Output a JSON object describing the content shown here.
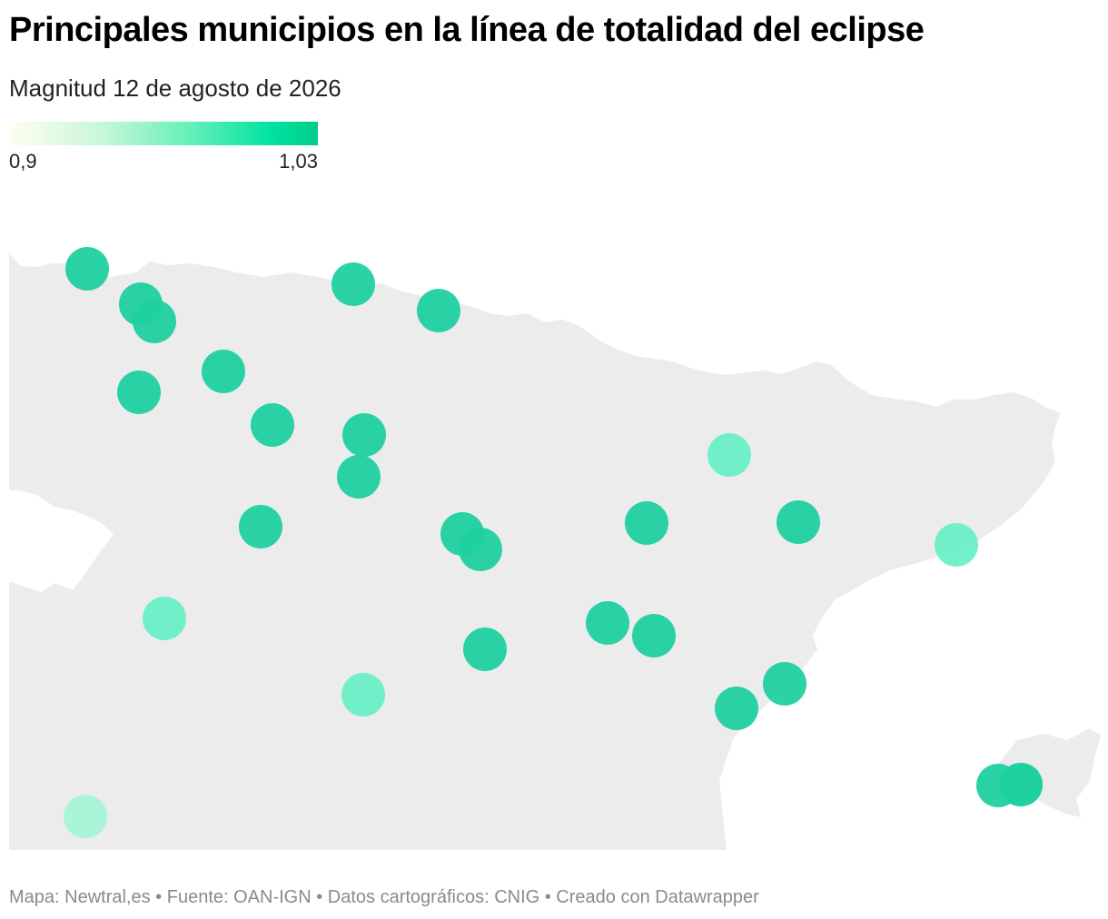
{
  "title": "Principales municipios en la línea de totalidad del eclipse",
  "subtitle": "Magnitud 12 de agosto de 2026",
  "legend": {
    "min_label": "0,9",
    "max_label": "1,03",
    "gradient_colors": [
      "#fffef0",
      "#c8f7d8",
      "#60efb8",
      "#00e3a0",
      "#00cc8a"
    ]
  },
  "colors": {
    "land": "#ececec",
    "marker_high": "#1fd0a0",
    "marker_mid": "#64f0c4",
    "marker_low": "#a3f5d6"
  },
  "footer": "Mapa: Newtral,es • Fuente: OAN-IGN • Datos cartográficos: CNIG  • Creado con Datawrapper",
  "markers": [
    {
      "id": "m1",
      "level": "high"
    },
    {
      "id": "m2",
      "level": "high"
    },
    {
      "id": "m3",
      "level": "high"
    },
    {
      "id": "m4",
      "level": "high"
    },
    {
      "id": "m5",
      "level": "high"
    },
    {
      "id": "m6",
      "level": "high"
    },
    {
      "id": "m7",
      "level": "high"
    },
    {
      "id": "m8",
      "level": "high"
    },
    {
      "id": "m9",
      "level": "high"
    },
    {
      "id": "m10",
      "level": "high"
    },
    {
      "id": "m11",
      "level": "high"
    },
    {
      "id": "m12",
      "level": "high"
    },
    {
      "id": "m13",
      "level": "high"
    },
    {
      "id": "m14",
      "level": "mid"
    },
    {
      "id": "m15",
      "level": "high"
    },
    {
      "id": "m16",
      "level": "high"
    },
    {
      "id": "m17",
      "level": "mid"
    },
    {
      "id": "m18",
      "level": "mid"
    },
    {
      "id": "m19",
      "level": "high"
    },
    {
      "id": "m20",
      "level": "high"
    },
    {
      "id": "m21",
      "level": "high"
    },
    {
      "id": "m22",
      "level": "high"
    },
    {
      "id": "m23",
      "level": "mid"
    },
    {
      "id": "m24",
      "level": "high"
    },
    {
      "id": "m25",
      "level": "high"
    },
    {
      "id": "m26",
      "level": "high"
    },
    {
      "id": "m27",
      "level": "high"
    },
    {
      "id": "m28",
      "level": "low"
    }
  ]
}
